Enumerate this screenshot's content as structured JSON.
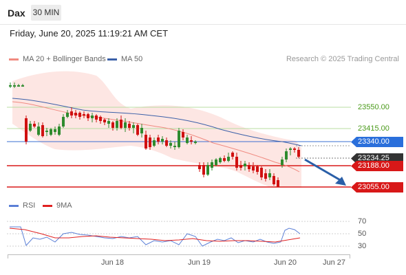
{
  "toolbar": {
    "symbol": "Dax",
    "timeframe": "30 MIN"
  },
  "header": {
    "datetime": "Friday, June 20, 2025 11:19:21 AM CET"
  },
  "legend": {
    "ma20": {
      "label": "MA 20 + Bollinger Bands",
      "color": "#f08a80"
    },
    "ma50": {
      "label": "MA 50",
      "color": "#3a5fa8"
    },
    "credit": "Research © 2025 Trading Central"
  },
  "levels": {
    "l1": "23550.00",
    "l2": "23415.00",
    "ma50_tag": "23340.00",
    "current": "23234.25",
    "l3": "23188.00",
    "l4": "23055.00"
  },
  "rsi_legend": {
    "rsi": {
      "label": "RSI",
      "color": "#5b7fd6"
    },
    "ma9": {
      "label": "9MA",
      "color": "#e02020"
    }
  },
  "rsi_levels": [
    "70",
    "50",
    "30"
  ],
  "x_labels": [
    "Jun 18",
    "Jun 19",
    "Jun 20",
    "Jun 27"
  ],
  "colors": {
    "up": "#2e8b2e",
    "down": "#d01010",
    "accent_blue": "#2a6fdb",
    "pivot_red": "#d81818",
    "arrow": "#2a5fa8"
  }
}
